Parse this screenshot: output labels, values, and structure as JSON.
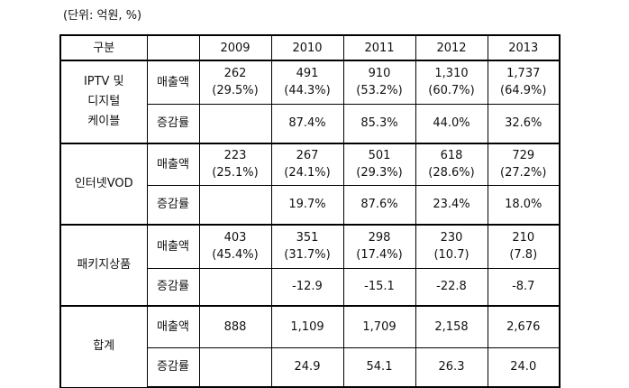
{
  "unit_note": "(단위: 억원, %)",
  "header": {
    "category": "구분",
    "years": [
      "2009",
      "2010",
      "2011",
      "2012",
      "2013"
    ]
  },
  "groups": [
    {
      "name": "IPTV 및\n디지털\n케이블",
      "rows": [
        {
          "metric": "매출액",
          "values": [
            "262\n(29.5%)",
            "491\n(44.3%)",
            "910\n(53.2%)",
            "1,310\n(60.7%)",
            "1,737\n(64.9%)"
          ]
        },
        {
          "metric": "증감률",
          "values": [
            "",
            "87.4%",
            "85.3%",
            "44.0%",
            "32.6%"
          ]
        }
      ]
    },
    {
      "name": "인터넷VOD",
      "rows": [
        {
          "metric": "매출액",
          "values": [
            "223\n(25.1%)",
            "267\n(24.1%)",
            "501\n(29.3%)",
            "618\n(28.6%)",
            "729\n(27.2%)"
          ]
        },
        {
          "metric": "증감률",
          "values": [
            "",
            "19.7%",
            "87.6%",
            "23.4%",
            "18.0%"
          ]
        }
      ]
    },
    {
      "name": "패키지상품",
      "rows": [
        {
          "metric": "매출액",
          "values": [
            "403\n(45.4%)",
            "351\n(31.7%)",
            "298\n(17.4%)",
            "230\n(10.7)",
            "210\n(7.8)"
          ]
        },
        {
          "metric": "증감률",
          "values": [
            "",
            "-12.9",
            "-15.1",
            "-22.8",
            "-8.7"
          ]
        }
      ]
    },
    {
      "name": "합계",
      "rows": [
        {
          "metric": "매출액",
          "values": [
            "888",
            "1,109",
            "1,709",
            "2,158",
            "2,676"
          ]
        },
        {
          "metric": "증감률",
          "values": [
            "",
            "24.9",
            "54.1",
            "26.3",
            "24.0"
          ]
        }
      ]
    }
  ]
}
